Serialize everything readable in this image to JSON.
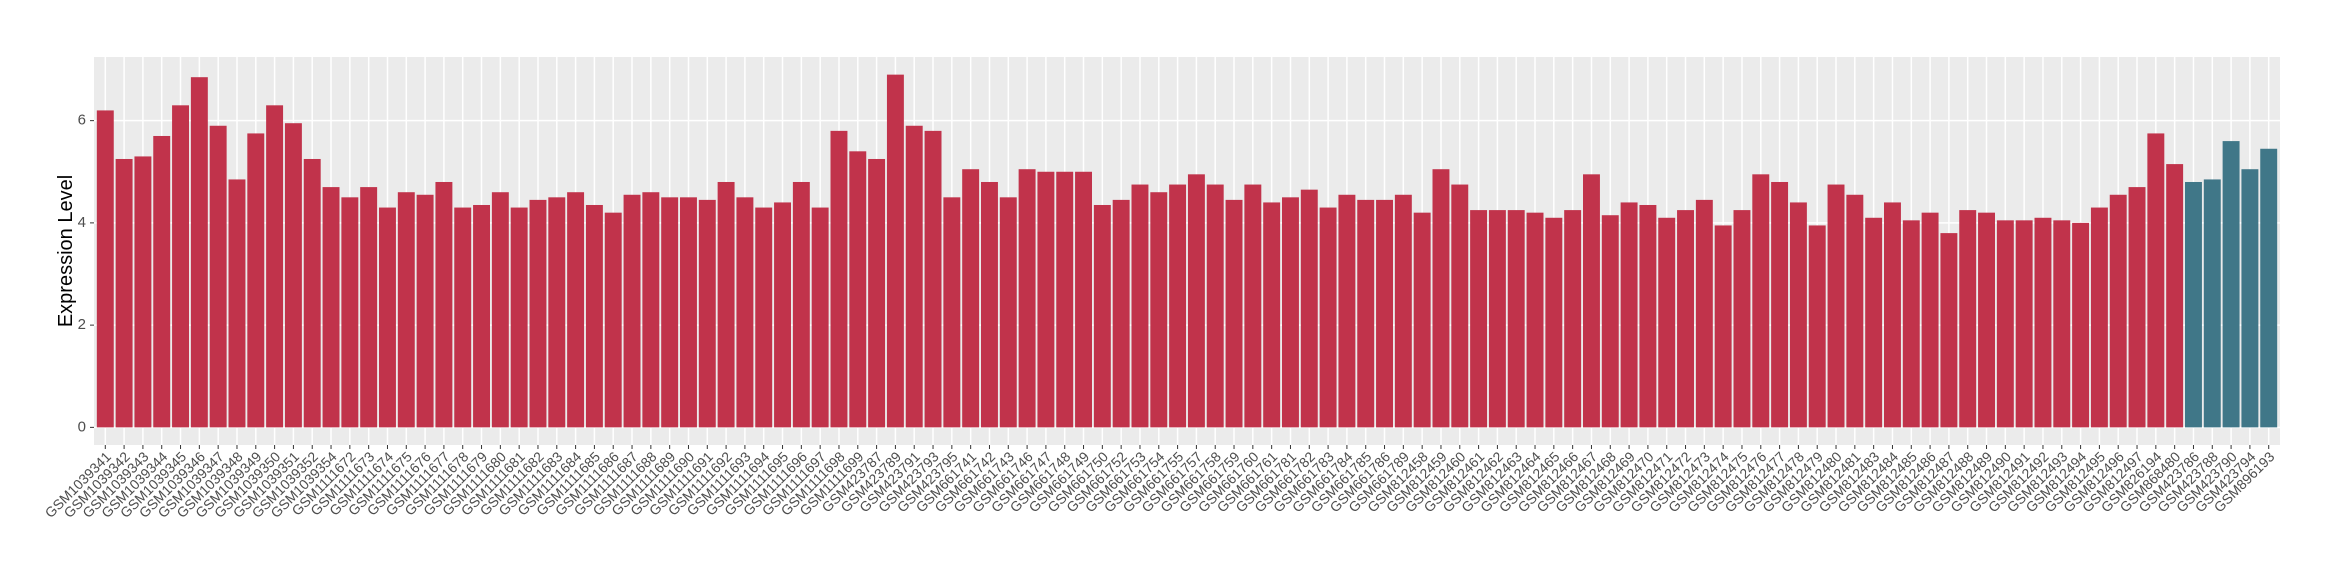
{
  "chart_data": {
    "type": "bar",
    "y_label": "Expression Level",
    "categories": [
      "GSM1039341",
      "GSM1039342",
      "GSM1039343",
      "GSM1039344",
      "GSM1039345",
      "GSM1039346",
      "GSM1039347",
      "GSM1039348",
      "GSM1039349",
      "GSM1039350",
      "GSM1039351",
      "GSM1039352",
      "GSM1039354",
      "GSM1111672",
      "GSM1111673",
      "GSM1111674",
      "GSM1111675",
      "GSM1111676",
      "GSM1111677",
      "GSM1111678",
      "GSM1111679",
      "GSM1111680",
      "GSM1111681",
      "GSM1111682",
      "GSM1111683",
      "GSM1111684",
      "GSM1111685",
      "GSM1111686",
      "GSM1111687",
      "GSM1111688",
      "GSM1111689",
      "GSM1111690",
      "GSM1111691",
      "GSM1111692",
      "GSM1111693",
      "GSM1111694",
      "GSM1111695",
      "GSM1111696",
      "GSM1111697",
      "GSM1111698",
      "GSM1111699",
      "GSM423787",
      "GSM423789",
      "GSM423791",
      "GSM423793",
      "GSM423795",
      "GSM661741",
      "GSM661742",
      "GSM661743",
      "GSM661746",
      "GSM661747",
      "GSM661748",
      "GSM661749",
      "GSM661750",
      "GSM661752",
      "GSM661753",
      "GSM661754",
      "GSM661755",
      "GSM661757",
      "GSM661758",
      "GSM661759",
      "GSM661760",
      "GSM661761",
      "GSM661781",
      "GSM661782",
      "GSM661783",
      "GSM661784",
      "GSM661785",
      "GSM661786",
      "GSM661789",
      "GSM812458",
      "GSM812459",
      "GSM812460",
      "GSM812461",
      "GSM812462",
      "GSM812463",
      "GSM812464",
      "GSM812465",
      "GSM812466",
      "GSM812467",
      "GSM812468",
      "GSM812469",
      "GSM812470",
      "GSM812471",
      "GSM812472",
      "GSM812473",
      "GSM812474",
      "GSM812475",
      "GSM812476",
      "GSM812477",
      "GSM812478",
      "GSM812479",
      "GSM812480",
      "GSM812481",
      "GSM812483",
      "GSM812484",
      "GSM812485",
      "GSM812486",
      "GSM812487",
      "GSM812488",
      "GSM812489",
      "GSM812490",
      "GSM812491",
      "GSM812492",
      "GSM812493",
      "GSM812494",
      "GSM812495",
      "GSM812496",
      "GSM812497",
      "GSM826194",
      "GSM868480",
      "GSM423786",
      "GSM423788",
      "GSM423790",
      "GSM423794",
      "GSM896193"
    ],
    "values": [
      6.2,
      5.25,
      5.3,
      5.7,
      6.3,
      6.85,
      5.9,
      4.85,
      5.75,
      6.3,
      5.95,
      5.25,
      4.7,
      4.5,
      4.7,
      4.3,
      4.6,
      4.55,
      4.8,
      4.3,
      4.35,
      4.6,
      4.3,
      4.45,
      4.5,
      4.6,
      4.35,
      4.2,
      4.55,
      4.6,
      4.5,
      4.5,
      4.45,
      4.8,
      4.5,
      4.3,
      4.4,
      4.8,
      4.3,
      5.8,
      5.4,
      5.25,
      6.9,
      5.9,
      5.8,
      4.5,
      5.05,
      4.8,
      4.5,
      5.05,
      5.0,
      5.0,
      5.0,
      4.35,
      4.45,
      4.75,
      4.6,
      4.75,
      4.95,
      4.75,
      4.45,
      4.75,
      4.4,
      4.5,
      4.65,
      4.3,
      4.55,
      4.45,
      4.45,
      4.55,
      4.2,
      5.05,
      4.75,
      4.25,
      4.25,
      4.25,
      4.2,
      4.1,
      4.25,
      4.95,
      4.15,
      4.4,
      4.35,
      4.1,
      4.25,
      4.45,
      3.95,
      4.25,
      4.95,
      4.8,
      4.4,
      3.95,
      4.75,
      4.55,
      4.1,
      4.4,
      4.05,
      4.2,
      3.8,
      4.25,
      4.2,
      4.05,
      4.05,
      4.1,
      4.05,
      4.0,
      4.3,
      4.55,
      4.7,
      5.75,
      5.15,
      4.8,
      4.85,
      5.6,
      5.05,
      5.45
    ],
    "bar_colors": [
      "#c1334b",
      "#c1334b",
      "#c1334b",
      "#c1334b",
      "#c1334b",
      "#c1334b",
      "#c1334b",
      "#c1334b",
      "#c1334b",
      "#c1334b",
      "#c1334b",
      "#c1334b",
      "#c1334b",
      "#c1334b",
      "#c1334b",
      "#c1334b",
      "#c1334b",
      "#c1334b",
      "#c1334b",
      "#c1334b",
      "#c1334b",
      "#c1334b",
      "#c1334b",
      "#c1334b",
      "#c1334b",
      "#c1334b",
      "#c1334b",
      "#c1334b",
      "#c1334b",
      "#c1334b",
      "#c1334b",
      "#c1334b",
      "#c1334b",
      "#c1334b",
      "#c1334b",
      "#c1334b",
      "#c1334b",
      "#c1334b",
      "#c1334b",
      "#c1334b",
      "#c1334b",
      "#c1334b",
      "#c1334b",
      "#c1334b",
      "#c1334b",
      "#c1334b",
      "#c1334b",
      "#c1334b",
      "#c1334b",
      "#c1334b",
      "#c1334b",
      "#c1334b",
      "#c1334b",
      "#c1334b",
      "#c1334b",
      "#c1334b",
      "#c1334b",
      "#c1334b",
      "#c1334b",
      "#c1334b",
      "#c1334b",
      "#c1334b",
      "#c1334b",
      "#c1334b",
      "#c1334b",
      "#c1334b",
      "#c1334b",
      "#c1334b",
      "#c1334b",
      "#c1334b",
      "#c1334b",
      "#c1334b",
      "#c1334b",
      "#c1334b",
      "#c1334b",
      "#c1334b",
      "#c1334b",
      "#c1334b",
      "#c1334b",
      "#c1334b",
      "#c1334b",
      "#c1334b",
      "#c1334b",
      "#c1334b",
      "#c1334b",
      "#c1334b",
      "#c1334b",
      "#c1334b",
      "#c1334b",
      "#c1334b",
      "#c1334b",
      "#c1334b",
      "#c1334b",
      "#c1334b",
      "#c1334b",
      "#c1334b",
      "#c1334b",
      "#c1334b",
      "#c1334b",
      "#c1334b",
      "#c1334b",
      "#c1334b",
      "#c1334b",
      "#c1334b",
      "#c1334b",
      "#c1334b",
      "#c1334b",
      "#c1334b",
      "#c1334b",
      "#c1334b",
      "#c1334b",
      "#407788",
      "#407788",
      "#407788",
      "#407788",
      "#407788"
    ],
    "ylim": [
      -0.345,
      7.245
    ],
    "yticks": [
      0,
      2,
      4,
      6
    ],
    "grid": true
  }
}
